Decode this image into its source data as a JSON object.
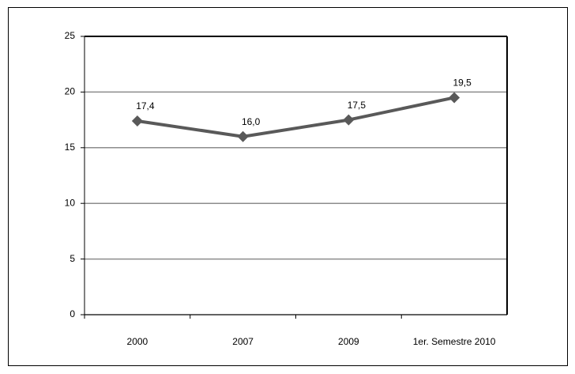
{
  "chart_data": {
    "type": "line",
    "categories": [
      "2000",
      "2007",
      "2009",
      "1er. Semestre 2010"
    ],
    "series": [
      {
        "color": "#595959",
        "values": [
          17.4,
          16.0,
          17.5,
          19.5
        ],
        "value_labels": [
          "17,4",
          "16,0",
          "17,5",
          "19,5"
        ]
      }
    ],
    "ylim": [
      0,
      25
    ],
    "yticks": [
      0,
      5,
      10,
      15,
      20,
      25
    ],
    "grid": true
  }
}
